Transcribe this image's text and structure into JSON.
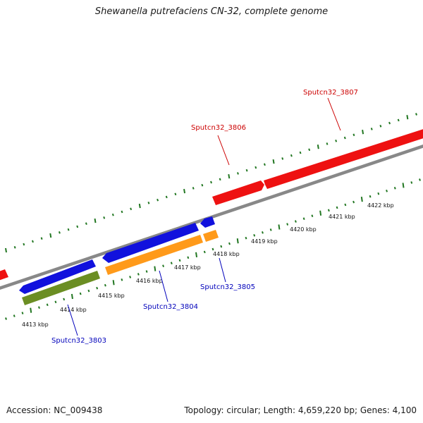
{
  "title": "Shewanella putrefaciens CN-32, complete genome",
  "footer": {
    "accession": "Accession: NC_009438",
    "stats": "Topology: circular; Length: 4,659,220 bp; Genes: 4,100"
  },
  "colors": {
    "forward_gene": "#ee1111",
    "reverse_gene": "#1111dd",
    "orange_feature": "#ff9a1a",
    "green_feature": "#6b8e23",
    "backbone": "#888888",
    "ticks": "#227722",
    "forward_label": "#cc0000",
    "reverse_label": "#0000bb"
  },
  "tick_labels": [
    "4413 kbp",
    "4414 kbp",
    "4415 kbp",
    "4416 kbp",
    "4417 kbp",
    "4418 kbp",
    "4419 kbp",
    "4420 kbp",
    "4421 kbp",
    "4422 kbp"
  ],
  "gene_labels": {
    "forward": [
      "Sputcn32_3806",
      "Sputcn32_3807"
    ],
    "reverse": [
      "Sputcn32_3803",
      "Sputcn32_3804",
      "Sputcn32_3805"
    ]
  }
}
